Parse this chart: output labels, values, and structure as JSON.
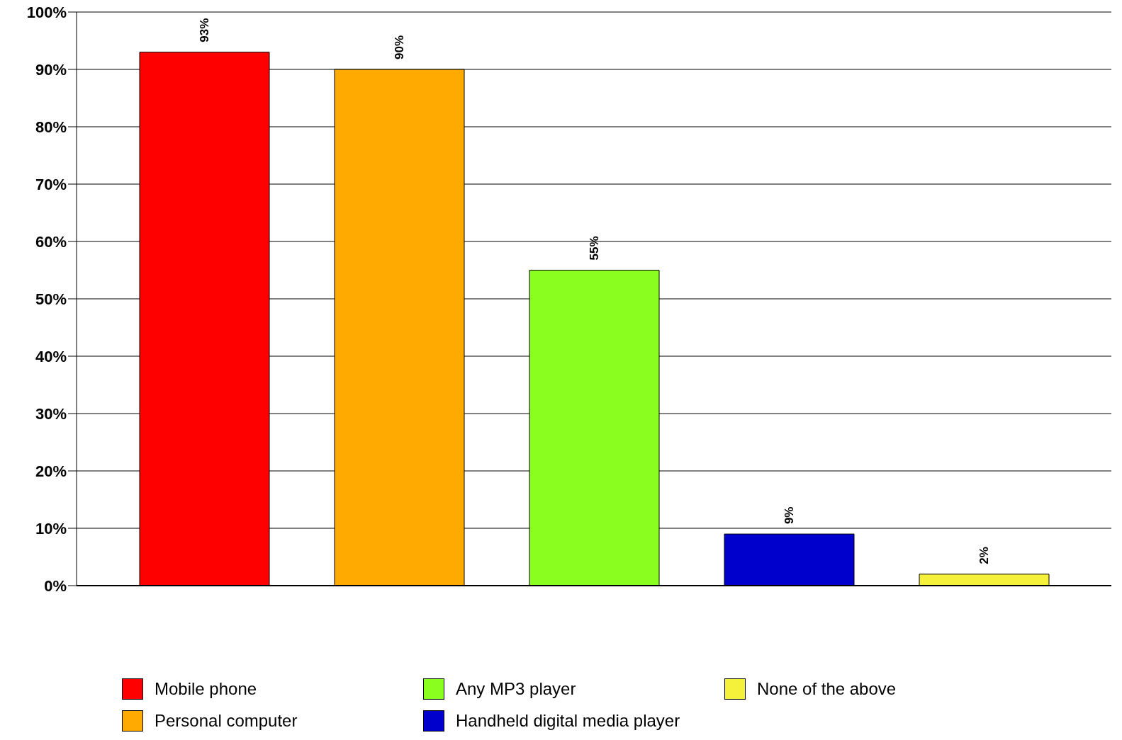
{
  "chart_data": {
    "type": "bar",
    "categories": [
      null
    ],
    "series": [
      {
        "name": "Mobile phone",
        "color": "#ff0000",
        "values": [
          93
        ],
        "value_labels": [
          "93%"
        ]
      },
      {
        "name": "Personal computer",
        "color": "#ffaa00",
        "values": [
          90
        ],
        "value_labels": [
          "90%"
        ]
      },
      {
        "name": "Any MP3 player",
        "color": "#8aff1f",
        "values": [
          55
        ],
        "value_labels": [
          "55%"
        ]
      },
      {
        "name": "Handheld digital media player",
        "color": "#0000cc",
        "values": [
          9
        ],
        "value_labels": [
          "9%"
        ]
      },
      {
        "name": "None of the above",
        "color": "#f5f03a",
        "values": [
          2
        ],
        "value_labels": [
          "2%"
        ]
      }
    ],
    "ylim": [
      0,
      100
    ],
    "yticks": [
      {
        "value": 0,
        "label": "0%"
      },
      {
        "value": 10,
        "label": "10%"
      },
      {
        "value": 20,
        "label": "20%"
      },
      {
        "value": 30,
        "label": "30%"
      },
      {
        "value": 40,
        "label": "40%"
      },
      {
        "value": 50,
        "label": "50%"
      },
      {
        "value": 60,
        "label": "60%"
      },
      {
        "value": 70,
        "label": "70%"
      },
      {
        "value": 80,
        "label": "80%"
      },
      {
        "value": 90,
        "label": "90%"
      },
      {
        "value": 100,
        "label": "100%"
      }
    ],
    "grid": "y",
    "legend": "bottom"
  }
}
